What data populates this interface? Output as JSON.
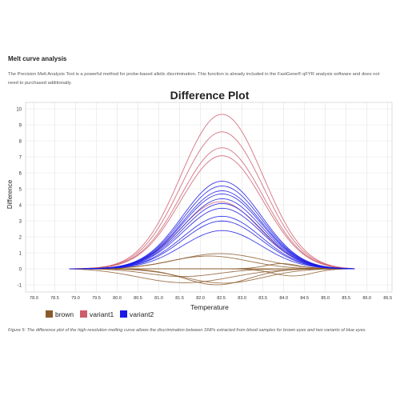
{
  "article": {
    "heading": "Melt curve analysis",
    "intro": "The Precision Melt Analysis Tool is a powerful method for probe-based allelic discrimination. This function is already included in the FastGene® qFYR analysis software and does not need to purchased additionally.",
    "caption": "Figure 5: The difference plot of the high-resolution melting curve allows the discrimination between SNPs extracted from blood samples for brown eyes and two variants of blue eyes."
  },
  "chart_data": {
    "type": "line",
    "title": "Difference Plot",
    "xlabel": "Temperature",
    "ylabel": "Difference",
    "xlim": [
      77.8,
      86.6
    ],
    "ylim": [
      -1.45,
      10.4
    ],
    "xticks": [
      "78.0",
      "78.5",
      "79.0",
      "79.5",
      "80.0",
      "80.5",
      "81.0",
      "81.5",
      "82.0",
      "82.5",
      "83.0",
      "83.5",
      "84.0",
      "84.5",
      "85.0",
      "85.5",
      "86.0",
      "86.5"
    ],
    "yticks": [
      "-1",
      "0",
      "1",
      "2",
      "3",
      "4",
      "5",
      "6",
      "7",
      "8",
      "9",
      "10"
    ],
    "grid": true,
    "legend_position": "bottom-left",
    "colors": {
      "brown": "#8B5A2B",
      "variant1": "#CD5C6C",
      "variant2": "#1A1AE6"
    },
    "x_range": [
      78.85,
      85.7
    ],
    "series": [
      {
        "name": "brown",
        "curves": [
          {
            "peak": 0.95,
            "center": 82.5,
            "width": 1.1
          },
          {
            "peak": 0.8,
            "center": 82.2,
            "width": 1.0
          },
          {
            "peak": -0.5,
            "center": 81.5,
            "width": 0.9
          },
          {
            "peak": -0.9,
            "center": 81.5,
            "width": 1.2
          },
          {
            "peak": -0.9,
            "center": 82.6,
            "width": 1.0
          },
          {
            "peak": -1.0,
            "center": 82.4,
            "width": 0.8
          },
          {
            "peak": -0.6,
            "center": 84.3,
            "width": 0.5
          },
          {
            "peak": 0.4,
            "center": 84.0,
            "width": 0.4
          },
          {
            "peak": 0.0,
            "center": 82.5,
            "width": 1.0
          }
        ]
      },
      {
        "name": "variant1",
        "curves": [
          {
            "peak": 9.7,
            "center": 82.55,
            "width": 1.05
          },
          {
            "peak": 8.6,
            "center": 82.55,
            "width": 1.05
          },
          {
            "peak": 7.6,
            "center": 82.55,
            "width": 1.05
          },
          {
            "peak": 7.1,
            "center": 82.55,
            "width": 1.05
          },
          {
            "peak": 4.2,
            "center": 82.5,
            "width": 1.0
          }
        ]
      },
      {
        "name": "variant2",
        "curves": [
          {
            "peak": 5.5,
            "center": 82.55,
            "width": 1.0
          },
          {
            "peak": 5.2,
            "center": 82.55,
            "width": 1.0
          },
          {
            "peak": 4.9,
            "center": 82.55,
            "width": 1.0
          },
          {
            "peak": 4.7,
            "center": 82.55,
            "width": 1.0
          },
          {
            "peak": 4.4,
            "center": 82.55,
            "width": 1.0
          },
          {
            "peak": 4.1,
            "center": 82.55,
            "width": 1.0
          },
          {
            "peak": 3.8,
            "center": 82.55,
            "width": 1.0
          },
          {
            "peak": 3.3,
            "center": 82.55,
            "width": 1.0
          },
          {
            "peak": 3.0,
            "center": 82.55,
            "width": 1.0
          },
          {
            "peak": 2.4,
            "center": 82.55,
            "width": 1.0
          }
        ]
      }
    ]
  }
}
